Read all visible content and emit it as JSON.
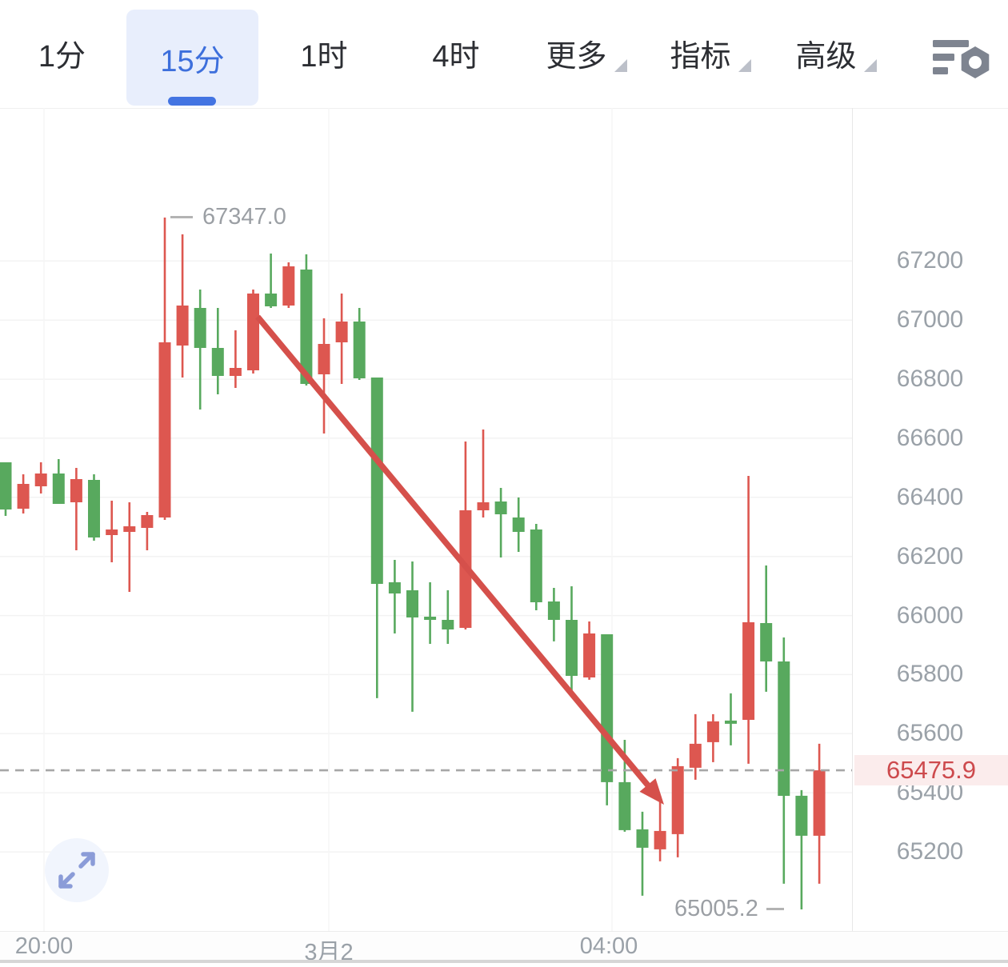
{
  "toolbar": {
    "tabs": [
      {
        "label": "1分",
        "selected": false
      },
      {
        "label": "15分",
        "selected": true
      },
      {
        "label": "1时",
        "selected": false
      },
      {
        "label": "4时",
        "selected": false
      }
    ],
    "menus": [
      {
        "label": "更多"
      },
      {
        "label": "指标"
      },
      {
        "label": "高级"
      }
    ],
    "selected_color": "#3d6fdc",
    "selected_bg": "#e8eefc"
  },
  "icons": {
    "settings": "chart-settings-icon",
    "expand": "expand-icon",
    "menu_caret": "caret-down-icon"
  },
  "chart_data": {
    "type": "candlestick",
    "interval": "15分",
    "up_color": "#dd5750",
    "down_color": "#58a95e",
    "grid": true,
    "legend_position": "none",
    "y_axis_ticks": [
      67200,
      67000,
      66800,
      66600,
      66400,
      66200,
      66000,
      65800,
      65600,
      65400,
      65200
    ],
    "x_axis_labels": [
      "20:00",
      "3月2",
      "04:00"
    ],
    "high": 67347.0,
    "high_label": "67347.0",
    "low": 65005.2,
    "low_label": "65005.2",
    "last_price": 65475.9,
    "last_price_label": "65475.9",
    "last_price_color": "#cd4a4d",
    "last_price_bg": "#fbecec",
    "ylim": [
      64900,
      67450
    ],
    "candles_ohlc": [
      [
        66518.6,
        66518.6,
        66337.3,
        66358.9
      ],
      [
        66361.6,
        66478,
        66345.4,
        66445.5
      ],
      [
        66437.4,
        66518.6,
        66413.1,
        66480.7
      ],
      [
        66480.7,
        66529.4,
        66377.9,
        66377.9
      ],
      [
        66383.3,
        66499.7,
        66220.8,
        66461.8
      ],
      [
        66459.1,
        66478,
        66253.3,
        66264.1
      ],
      [
        66272.3,
        66388.7,
        66180.2,
        66291.2
      ],
      [
        66283.1,
        66383.3,
        66080,
        66302.1
      ],
      [
        66296.6,
        66350.8,
        66220.8,
        66340
      ],
      [
        66331.8,
        67347,
        66323.7,
        66924.7
      ],
      [
        66913.9,
        67290.2,
        66805.6,
        67049.2
      ],
      [
        67041.1,
        67103.4,
        66697.3,
        66905.8
      ],
      [
        66905.8,
        67041.1,
        66748.8,
        66811.1
      ],
      [
        66811.1,
        66965.3,
        66770.4,
        66838.1
      ],
      [
        66830,
        67103.4,
        66819.2,
        67089.8
      ],
      [
        67089.8,
        67225.2,
        67041.1,
        67046.5
      ],
      [
        67049.2,
        67195.4,
        67041.1,
        67181.9
      ],
      [
        67171.1,
        67222.5,
        66778.6,
        66784
      ],
      [
        66816.5,
        67005.9,
        66616.1,
        66919.3
      ],
      [
        66924.7,
        67089.8,
        66784,
        66995.1
      ],
      [
        66995.1,
        67041.1,
        66797.5,
        66802.9
      ],
      [
        66805.6,
        66805.6,
        65720.1,
        66107.1
      ],
      [
        66112.5,
        66188.3,
        65939.3,
        66074.6
      ],
      [
        66085.5,
        66182.9,
        65674.1,
        65993.4
      ],
      [
        65996.1,
        66112.5,
        65904.1,
        65985.3
      ],
      [
        65985.3,
        66085.5,
        65904.1,
        65952.9
      ],
      [
        65958.3,
        66589,
        65952.9,
        66356.2
      ],
      [
        66356.2,
        66629.6,
        66331.8,
        66383.3
      ],
      [
        66386,
        66432,
        66196.4,
        66342.7
      ],
      [
        66331.8,
        66399.5,
        66215.4,
        66283.1
      ],
      [
        66291.2,
        66310.2,
        66017.8,
        66044.8
      ],
      [
        66047.5,
        66093.6,
        65912.3,
        65985.3
      ],
      [
        65985.3,
        66099,
        65741.8,
        65795.9
      ],
      [
        65790.5,
        65979.9,
        65782.4,
        65939.3
      ],
      [
        65936.6,
        65936.6,
        65357.4,
        65435.9
      ],
      [
        65435.9,
        65579.3,
        65268.1,
        65273.5
      ],
      [
        65276.2,
        65335.7,
        65051.5,
        65213.9
      ],
      [
        65208.5,
        65376.3,
        65167.9,
        65270.8
      ],
      [
        65259.9,
        65517.1,
        65181.5,
        65490
      ],
      [
        65484.6,
        65666,
        65444,
        65565.8
      ],
      [
        65571.2,
        65666,
        65503.6,
        65641.6
      ],
      [
        65644.3,
        65736.4,
        65560.4,
        65633.5
      ],
      [
        65647,
        66472.6,
        65498.2,
        65977.2
      ],
      [
        65974.5,
        66169.3,
        65741.8,
        65844.6
      ],
      [
        65844.6,
        65925.8,
        65092.1,
        65389.9
      ],
      [
        65389.9,
        65408.8,
        65005.2,
        65254.5
      ],
      [
        65254.5,
        65565.8,
        65092.1,
        65475.9
      ]
    ]
  },
  "annotations": {
    "trend_arrow": {
      "direction": "down-right",
      "color": "#d5504b"
    }
  }
}
